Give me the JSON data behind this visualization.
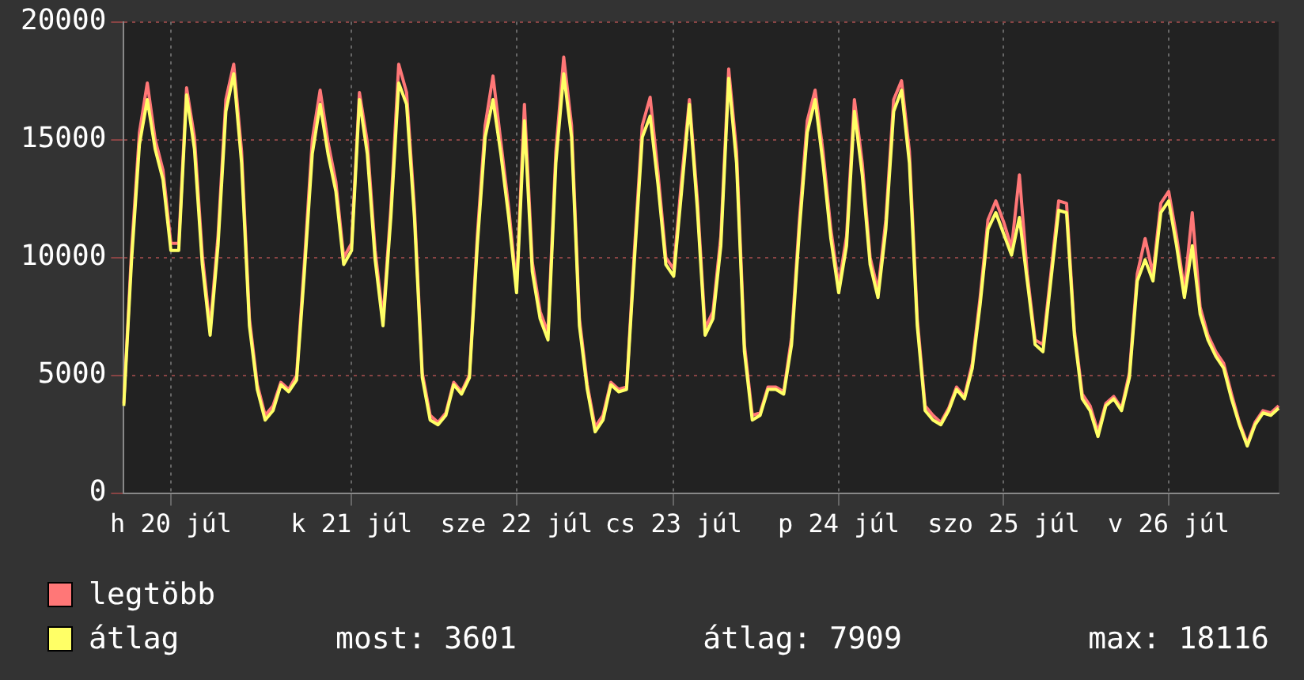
{
  "chart_data": {
    "type": "line",
    "categories": [
      null,
      null,
      null,
      null,
      null,
      null,
      "h 20 júl",
      null,
      null,
      null,
      null,
      null,
      null,
      null,
      null,
      null,
      null,
      null,
      null,
      null,
      null,
      null,
      null,
      null,
      null,
      null,
      null,
      null,
      null,
      "k 21 júl",
      null,
      null,
      null,
      null,
      null,
      null,
      null,
      null,
      null,
      null,
      null,
      null,
      null,
      null,
      null,
      null,
      null,
      null,
      null,
      null,
      "sze 22 júl",
      null,
      null,
      null,
      null,
      null,
      null,
      null,
      null,
      null,
      null,
      null,
      null,
      null,
      null,
      null,
      null,
      null,
      null,
      null,
      "cs 23 júl",
      null,
      null,
      null,
      null,
      null,
      null,
      null,
      null,
      null,
      null,
      null,
      null,
      null,
      null,
      null,
      null,
      null,
      null,
      null,
      null,
      "p 24 júl",
      null,
      null,
      null,
      null,
      null,
      null,
      null,
      null,
      null,
      null,
      null,
      null,
      null,
      null,
      null,
      null,
      null,
      null,
      null,
      null,
      "szo 25 júl",
      null,
      null,
      null,
      null,
      null,
      null,
      null,
      null,
      null,
      null,
      null,
      null,
      null,
      null,
      null,
      null,
      null,
      null,
      null,
      null,
      "v 26 júl",
      null,
      null,
      null,
      null,
      null,
      null,
      null,
      null,
      null,
      null,
      null,
      null,
      null,
      null
    ],
    "series": [
      {
        "name": "legtöbb",
        "color": "#ff7777",
        "values": [
          3800,
          10300,
          15300,
          17400,
          15000,
          13700,
          10600,
          10600,
          17200,
          15100,
          10100,
          7000,
          10900,
          16700,
          18200,
          14500,
          7400,
          4600,
          3300,
          3700,
          4700,
          4400,
          5000,
          9800,
          15000,
          17100,
          14900,
          13200,
          10000,
          10600,
          17000,
          14900,
          10300,
          7400,
          12100,
          18200,
          17000,
          12100,
          5100,
          3300,
          3000,
          3400,
          4700,
          4300,
          5000,
          10900,
          15600,
          17700,
          14900,
          12100,
          8800,
          16500,
          9800,
          7700,
          6800,
          14500,
          18500,
          15600,
          7400,
          4600,
          2800,
          3300,
          4700,
          4400,
          4500,
          10300,
          15600,
          16800,
          13600,
          10000,
          9500,
          13300,
          16700,
          12500,
          7000,
          7700,
          10900,
          18000,
          14500,
          6300,
          3300,
          3400,
          4500,
          4500,
          4300,
          6600,
          11600,
          15800,
          17100,
          14500,
          11200,
          8800,
          10900,
          16700,
          14000,
          10000,
          8600,
          11600,
          16700,
          17500,
          14500,
          7400,
          3700,
          3300,
          3000,
          3600,
          4500,
          4100,
          5500,
          8300,
          11600,
          12400,
          11500,
          10400,
          13500,
          9300,
          6500,
          6300,
          9300,
          12400,
          12300,
          6900,
          4200,
          3700,
          2600,
          3800,
          4100,
          3600,
          5100,
          9300,
          10800,
          9300,
          12300,
          12800,
          10900,
          8600,
          11900,
          7900,
          6700,
          6000,
          5500,
          4200,
          3000,
          2100,
          3000,
          3500,
          3400,
          3700
        ]
      },
      {
        "name": "átlag",
        "color": "#ffff66",
        "values": [
          3700,
          9900,
          14800,
          16700,
          14600,
          13300,
          10300,
          10300,
          16900,
          14600,
          9700,
          6700,
          10500,
          16200,
          17800,
          14000,
          7100,
          4400,
          3100,
          3500,
          4600,
          4300,
          4800,
          9400,
          14400,
          16500,
          14400,
          12800,
          9700,
          10300,
          16700,
          14400,
          9900,
          7100,
          11700,
          17400,
          16500,
          11700,
          4900,
          3100,
          2900,
          3300,
          4600,
          4200,
          4900,
          10500,
          15100,
          16700,
          14400,
          11700,
          8500,
          15800,
          9400,
          7400,
          6500,
          14000,
          17800,
          15100,
          7100,
          4400,
          2600,
          3100,
          4600,
          4300,
          4400,
          9900,
          15100,
          16000,
          13100,
          9700,
          9200,
          12800,
          16500,
          12100,
          6700,
          7400,
          10500,
          17600,
          14000,
          6000,
          3100,
          3300,
          4400,
          4400,
          4200,
          6300,
          11200,
          15300,
          16700,
          14000,
          10800,
          8500,
          10500,
          16200,
          13500,
          9700,
          8300,
          11200,
          16200,
          17100,
          14000,
          7100,
          3500,
          3100,
          2900,
          3500,
          4400,
          4000,
          5300,
          8000,
          11200,
          11900,
          11000,
          10100,
          11700,
          9000,
          6300,
          6000,
          9000,
          12000,
          11900,
          6700,
          4000,
          3500,
          2400,
          3700,
          4000,
          3500,
          4900,
          9000,
          9900,
          9000,
          11900,
          12400,
          10500,
          8300,
          10500,
          7600,
          6500,
          5800,
          5300,
          4000,
          2900,
          2000,
          2900,
          3400,
          3300,
          3600
        ]
      }
    ],
    "ylim": [
      0,
      20000
    ],
    "yticks": [
      0,
      5000,
      10000,
      15000,
      20000
    ],
    "grid": true,
    "legend": "bottom left",
    "annotations": [
      "most: 3601",
      "átlag: 7909",
      "max: 18116"
    ]
  }
}
